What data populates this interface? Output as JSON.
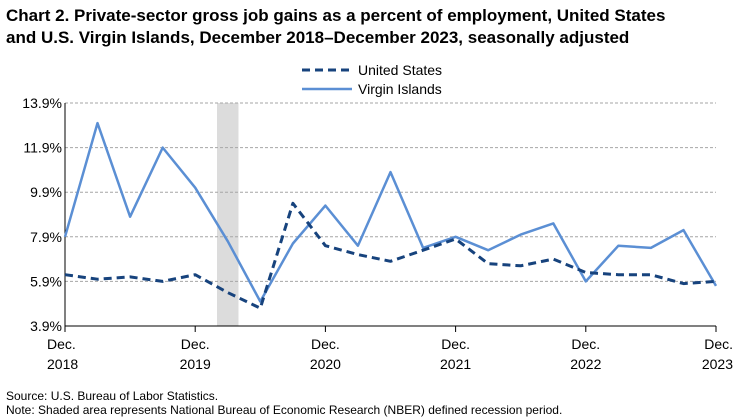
{
  "title_lines": [
    "Chart 2. Private-sector gross job gains as a percent of employment, United States",
    "and U.S. Virgin Islands, December 2018–December 2023, seasonally adjusted"
  ],
  "source": "Source: U.S. Bureau of Labor Statistics.",
  "note": "Note: Shaded area represents National Bureau of Economic Research (NBER) defined  recession period.",
  "chart_data": {
    "type": "line",
    "title": "Chart 2. Private-sector gross job gains as a percent of employment, United States and U.S. Virgin Islands, December 2018–December 2023, seasonally adjusted",
    "x": [
      "Dec. 2018",
      "Mar. 2019",
      "Jun. 2019",
      "Sep. 2019",
      "Dec. 2019",
      "Mar. 2020",
      "Jun. 2020",
      "Sep. 2020",
      "Dec. 2020",
      "Mar. 2021",
      "Jun. 2021",
      "Sep. 2021",
      "Dec. 2021",
      "Mar. 2022",
      "Jun. 2022",
      "Sep. 2022",
      "Dec. 2022",
      "Mar. 2023",
      "Jun. 2023",
      "Sep. 2023",
      "Dec. 2023"
    ],
    "x_tick_labels": [
      {
        "index": 0,
        "line1": "Dec.",
        "line2": "2018"
      },
      {
        "index": 4,
        "line1": "Dec.",
        "line2": "2019"
      },
      {
        "index": 8,
        "line1": "Dec.",
        "line2": "2020"
      },
      {
        "index": 12,
        "line1": "Dec.",
        "line2": "2021"
      },
      {
        "index": 16,
        "line1": "Dec.",
        "line2": "2022"
      },
      {
        "index": 20,
        "line1": "Dec.",
        "line2": "2023"
      }
    ],
    "y_ticks": [
      "3.9%",
      "5.9%",
      "7.9%",
      "9.9%",
      "11.9%",
      "13.9%"
    ],
    "y_tick_values": [
      3.9,
      5.9,
      7.9,
      9.9,
      11.9,
      13.9
    ],
    "ylim": [
      3.9,
      13.9
    ],
    "grid": "horizontal dashed",
    "legend_position": "top-center",
    "recession_shading": {
      "from": "Feb. 2020",
      "to": "Apr. 2020",
      "from_index": 4.67,
      "to_index": 5.33,
      "color": "#dcdcdc"
    },
    "series": [
      {
        "name": "United States",
        "style": "dashed",
        "color": "#17437d",
        "values": [
          6.2,
          6.0,
          6.1,
          5.9,
          6.2,
          5.4,
          4.7,
          9.4,
          7.5,
          7.1,
          6.8,
          7.3,
          7.8,
          6.7,
          6.6,
          6.9,
          6.3,
          6.2,
          6.2,
          5.8,
          5.9
        ]
      },
      {
        "name": "Virgin Islands",
        "style": "solid",
        "color": "#5b8fd4",
        "values": [
          7.9,
          13.0,
          8.8,
          11.9,
          10.1,
          7.7,
          5.0,
          7.6,
          9.3,
          7.5,
          10.8,
          7.4,
          7.9,
          7.3,
          8.0,
          8.5,
          5.9,
          7.5,
          7.4,
          8.2,
          5.7
        ]
      }
    ]
  }
}
